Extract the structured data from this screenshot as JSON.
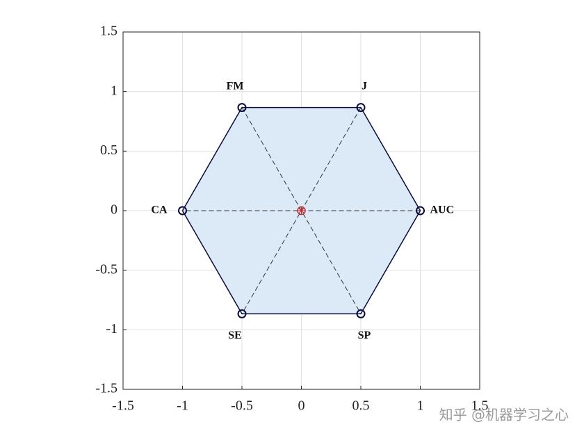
{
  "chart_data": {
    "type": "polygon",
    "x": [
      1,
      0.5,
      -0.5,
      -1,
      -0.5,
      0.5
    ],
    "values": [
      0,
      0.866,
      0.866,
      0,
      -0.866,
      -0.866
    ],
    "labels": [
      "AUC",
      "J",
      "FM",
      "CA",
      "SE",
      "SP"
    ],
    "center": {
      "x": 0,
      "y": 0
    },
    "color": "#0b0b3b",
    "fill": "#dce9f7",
    "center_color": "#c0282d",
    "xlim": [
      -1.5,
      1.5
    ],
    "ylim": [
      -1.5,
      1.5
    ],
    "xticks": [
      -1.5,
      -1,
      -0.5,
      0,
      0.5,
      1,
      1.5
    ],
    "yticks": [
      -1.5,
      -1,
      -0.5,
      0,
      0.5,
      1,
      1.5
    ],
    "grid": true,
    "watermark": "知乎 @机器学习之心"
  }
}
